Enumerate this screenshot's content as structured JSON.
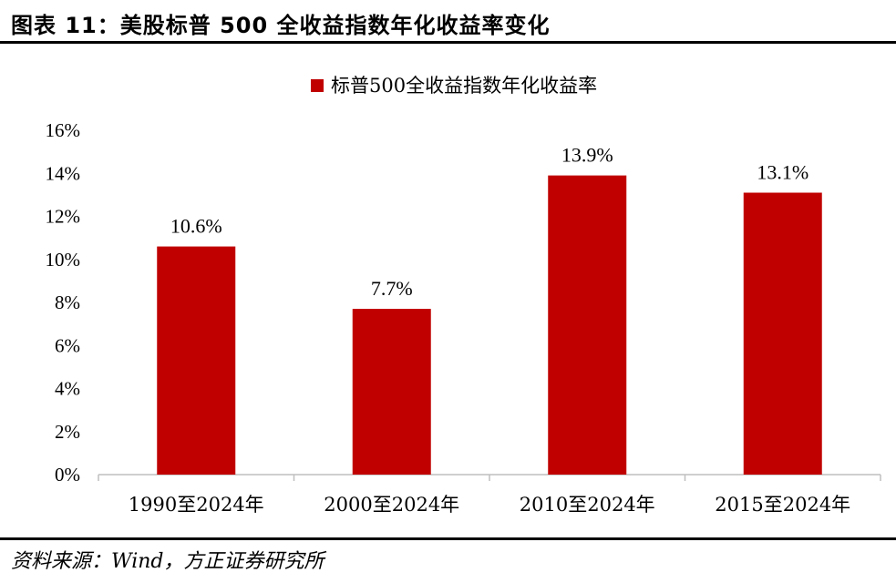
{
  "header": {
    "title": "图表 11：美股标普 500 全收益指数年化收益率变化"
  },
  "footer": {
    "source": "资料来源：Wind，方正证券研究所"
  },
  "colors": {
    "bar": "#c00000",
    "axis": "#bfbfbf"
  },
  "chart_data": {
    "type": "bar",
    "title": "",
    "xlabel": "",
    "ylabel": "",
    "categories": [
      "1990至2024年",
      "2000至2024年",
      "2010至2024年",
      "2015至2024年"
    ],
    "series": [
      {
        "name": "标普500全收益指数年化收益率",
        "values": [
          10.6,
          7.7,
          13.9,
          13.1
        ],
        "labels": [
          "10.6%",
          "7.7%",
          "13.9%",
          "13.1%"
        ]
      }
    ],
    "ylim": [
      0,
      16
    ],
    "yticks": [
      0,
      2,
      4,
      6,
      8,
      10,
      12,
      14,
      16
    ],
    "ytick_labels": [
      "0%",
      "2%",
      "4%",
      "6%",
      "8%",
      "10%",
      "12%",
      "14%",
      "16%"
    ],
    "grid": false,
    "legend_position": "top-center"
  }
}
